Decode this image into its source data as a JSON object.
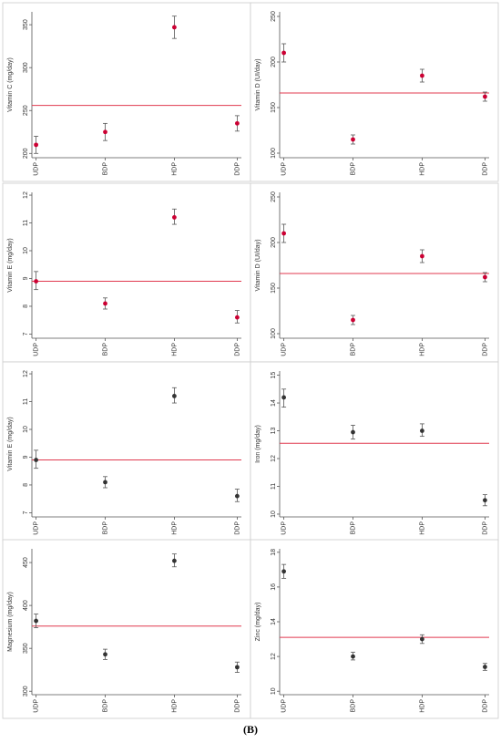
{
  "caption": "(B)",
  "colors": {
    "reference_line": "#e0394f",
    "errorbar": "#555555",
    "panel_border": "#cccccc"
  },
  "chart_data": [
    {
      "type": "scatter",
      "error_bars": true,
      "xlabel": "",
      "ylabel": "Vitamin C (mg/day)",
      "categories": [
        "UDP",
        "BDP",
        "HDP",
        "DDP"
      ],
      "values": [
        210,
        225,
        347,
        235
      ],
      "lower": [
        200,
        215,
        334,
        226
      ],
      "upper": [
        220,
        235,
        360,
        244
      ],
      "reference": 256,
      "ylim": [
        195,
        365
      ],
      "yticks": [
        200,
        250,
        300,
        350
      ],
      "marker_color": "#cc0033",
      "grid": false
    },
    {
      "type": "scatter",
      "error_bars": true,
      "xlabel": "",
      "ylabel": "Vitamin D (UI/day)",
      "categories": [
        "UDP",
        "BDP",
        "HDP",
        "DDP"
      ],
      "values": [
        210,
        115,
        185,
        162
      ],
      "lower": [
        200,
        110,
        178,
        157
      ],
      "upper": [
        220,
        120,
        192,
        167
      ],
      "reference": 166,
      "ylim": [
        95,
        255
      ],
      "yticks": [
        100,
        150,
        200,
        250
      ],
      "marker_color": "#cc0033",
      "grid": false
    },
    {
      "type": "scatter",
      "error_bars": true,
      "xlabel": "",
      "ylabel": "Vitamin E (mg/day)",
      "categories": [
        "UDP",
        "BDP",
        "HDP",
        "DDP"
      ],
      "values": [
        8.9,
        8.1,
        11.2,
        7.6
      ],
      "lower": [
        8.6,
        7.9,
        10.95,
        7.4
      ],
      "upper": [
        9.25,
        8.3,
        11.5,
        7.85
      ],
      "reference": 8.9,
      "ylim": [
        6.85,
        12.1
      ],
      "yticks": [
        7,
        8,
        9,
        10,
        11,
        12
      ],
      "marker_color": "#cc0033",
      "grid": false
    },
    {
      "type": "scatter",
      "error_bars": true,
      "xlabel": "",
      "ylabel": "Vitamin D (UI/day)",
      "categories": [
        "UDP",
        "BDP",
        "HDP",
        "DDP"
      ],
      "values": [
        210,
        115,
        185,
        162
      ],
      "lower": [
        200,
        110,
        178,
        157
      ],
      "upper": [
        220,
        120,
        192,
        167
      ],
      "reference": 166,
      "ylim": [
        95,
        255
      ],
      "yticks": [
        100,
        150,
        200,
        250
      ],
      "marker_color": "#cc0033",
      "grid": false
    },
    {
      "type": "scatter",
      "error_bars": true,
      "xlabel": "",
      "ylabel": "Vitamin E (mg/day)",
      "categories": [
        "UDP",
        "BDP",
        "HDP",
        "DDP"
      ],
      "values": [
        8.9,
        8.1,
        11.2,
        7.6
      ],
      "lower": [
        8.6,
        7.9,
        10.95,
        7.4
      ],
      "upper": [
        9.25,
        8.3,
        11.5,
        7.85
      ],
      "reference": 8.9,
      "ylim": [
        6.85,
        12.1
      ],
      "yticks": [
        7,
        8,
        9,
        10,
        11,
        12
      ],
      "marker_color": "#333333",
      "grid": false
    },
    {
      "type": "scatter",
      "error_bars": true,
      "xlabel": "",
      "ylabel": "Iron (mg/day)",
      "categories": [
        "UDP",
        "BDP",
        "HDP",
        "DDP"
      ],
      "values": [
        14.2,
        12.95,
        13.0,
        10.5
      ],
      "lower": [
        13.85,
        12.7,
        12.8,
        10.3
      ],
      "upper": [
        14.5,
        13.2,
        13.25,
        10.7
      ],
      "reference": 12.55,
      "ylim": [
        9.9,
        15.15
      ],
      "yticks": [
        10,
        11,
        12,
        13,
        14,
        15
      ],
      "marker_color": "#333333",
      "grid": false
    },
    {
      "type": "scatter",
      "error_bars": true,
      "xlabel": "",
      "ylabel": "Magnesium (mg/day)",
      "categories": [
        "UDP",
        "BDP",
        "HDP",
        "DDP"
      ],
      "values": [
        382,
        343,
        452,
        328
      ],
      "lower": [
        374,
        337,
        445,
        322
      ],
      "upper": [
        390,
        349,
        460,
        334
      ],
      "reference": 376,
      "ylim": [
        296,
        466
      ],
      "yticks": [
        300,
        350,
        400,
        450
      ],
      "marker_color": "#333333",
      "grid": false
    },
    {
      "type": "scatter",
      "error_bars": true,
      "xlabel": "",
      "ylabel": "Zinc (mg/day)",
      "categories": [
        "UDP",
        "BDP",
        "HDP",
        "DDP"
      ],
      "values": [
        16.9,
        12.0,
        13.0,
        11.4
      ],
      "lower": [
        16.5,
        11.8,
        12.75,
        11.2
      ],
      "upper": [
        17.3,
        12.25,
        13.25,
        11.6
      ],
      "reference": 13.1,
      "ylim": [
        9.8,
        18.2
      ],
      "yticks": [
        10,
        12,
        14,
        16,
        18
      ],
      "marker_color": "#333333",
      "grid": false
    }
  ]
}
